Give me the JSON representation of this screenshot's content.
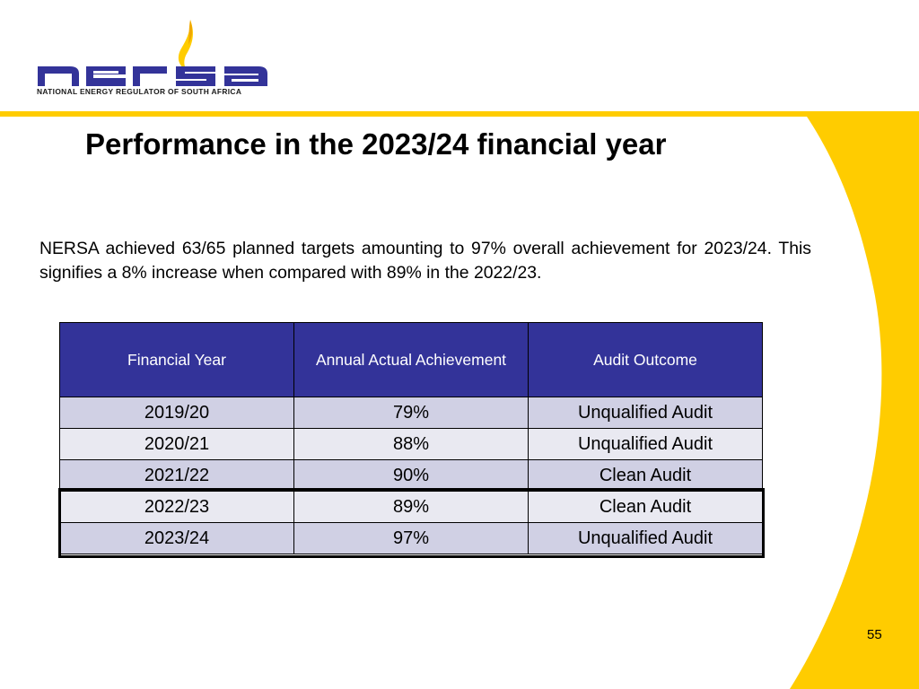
{
  "colors": {
    "brand_blue": "#333399",
    "accent_yellow": "#ffcc00",
    "row_dark": "#d0d0e4",
    "row_light": "#e9e9f1"
  },
  "logo": {
    "wordmark": "nersa",
    "tagline": "NATIONAL ENERGY REGULATOR OF SOUTH AFRICA",
    "icon": "flame-icon"
  },
  "slide": {
    "title": "Performance in the 2023/24 financial year",
    "intro": "NERSA achieved 63/65 planned targets amounting to 97% overall achievement for 2023/24. This signifies a 8% increase when compared with 89% in the 2022/23.",
    "page_number": "55"
  },
  "table": {
    "headers": [
      "Financial Year",
      "Annual Actual Achievement",
      "Audit Outcome"
    ],
    "rows": [
      [
        "2019/20",
        "79%",
        "Unqualified Audit"
      ],
      [
        "2020/21",
        "88%",
        "Unqualified Audit"
      ],
      [
        "2021/22",
        "90%",
        "Clean Audit"
      ],
      [
        "2022/23",
        "89%",
        "Clean Audit"
      ],
      [
        "2023/24",
        "97%",
        "Unqualified Audit"
      ]
    ]
  }
}
